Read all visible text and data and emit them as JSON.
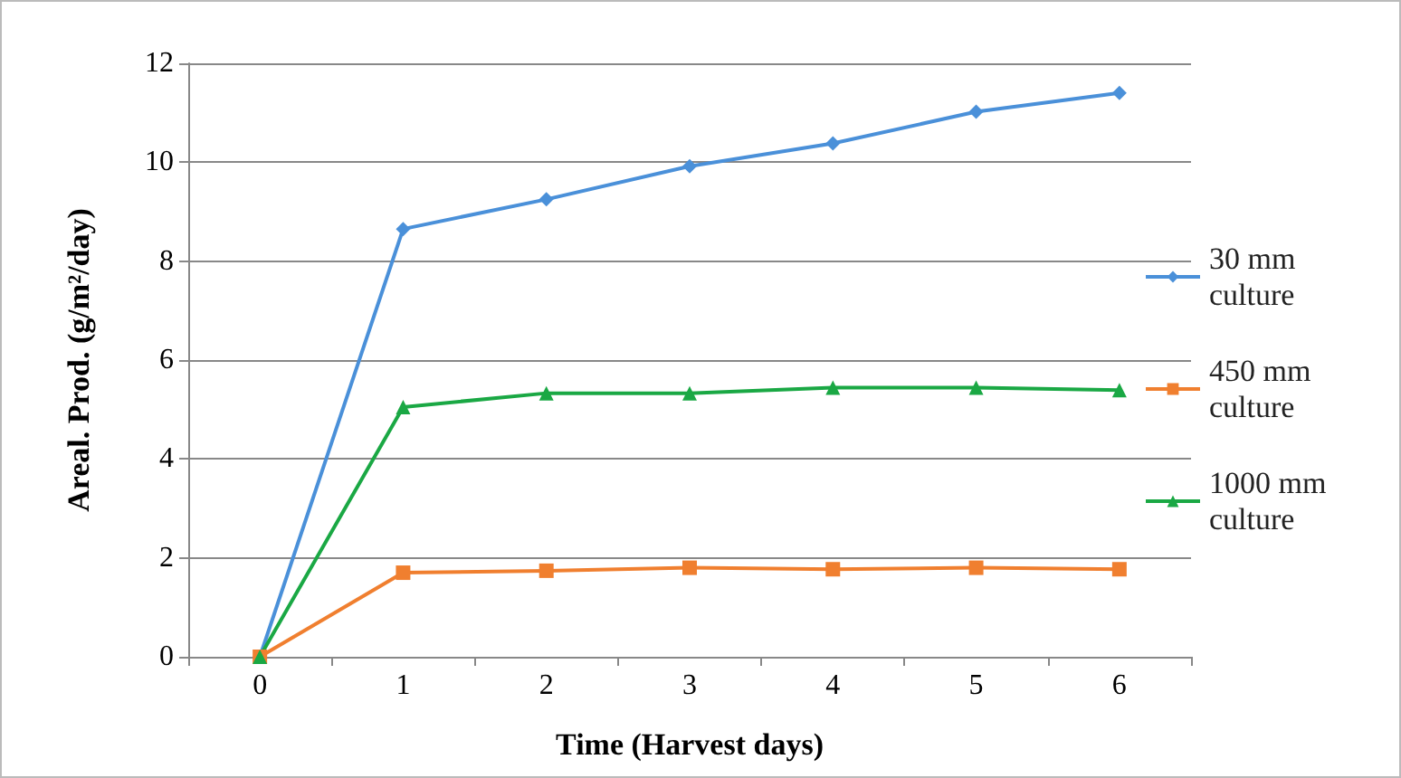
{
  "chart_data": {
    "type": "line",
    "xlabel": "Time (Harvest days)",
    "ylabel": "Areal. Prod. (g/m²/day)",
    "categories": [
      "0",
      "1",
      "2",
      "3",
      "4",
      "5",
      "6"
    ],
    "series": [
      {
        "name": "30 mm culture",
        "color": "#4a90d9",
        "marker": "diamond",
        "values": [
          0,
          8.65,
          9.25,
          9.92,
          10.38,
          11.02,
          11.4
        ]
      },
      {
        "name": "450 mm culture",
        "color": "#f07f2f",
        "marker": "square",
        "values": [
          0,
          1.7,
          1.74,
          1.8,
          1.77,
          1.8,
          1.77
        ]
      },
      {
        "name": "1000 mm culture",
        "color": "#1aa844",
        "marker": "triangle",
        "values": [
          0,
          5.05,
          5.33,
          5.33,
          5.44,
          5.44,
          5.39
        ]
      }
    ],
    "ylim": [
      0,
      12
    ],
    "yticks": [
      0,
      2,
      4,
      6,
      8,
      10,
      12
    ],
    "grid": "y",
    "legend": "right",
    "line_style": "solid"
  }
}
